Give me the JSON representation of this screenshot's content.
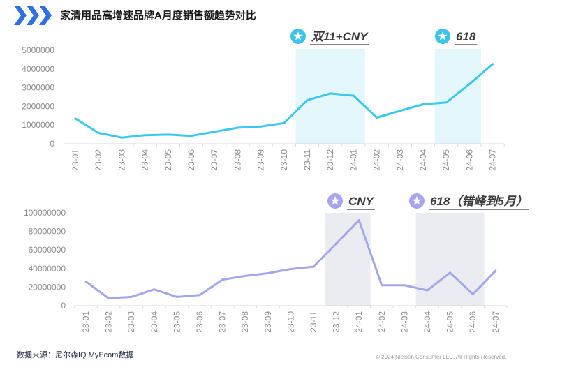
{
  "page": {
    "title": "家清用品高增速品牌A月度销售额趋势对比",
    "source": "数据来源：尼尔森IQ  MyEcom数据",
    "copyright": "© 2024  Nielsen Consumer LLC. All Rights Reserved.",
    "colors": {
      "brand_blue": "#2f6fe8",
      "line1": "#38c8f0",
      "band1": "#e3f7fd",
      "star1": "#3bc3ee",
      "line2": "#a2a6ef",
      "band2": "#ebebf2",
      "star2": "#a6a4ee",
      "axis_text": "#8c8c8c",
      "annotation_text": "#3a3a3a"
    }
  },
  "chart_data": [
    {
      "type": "line",
      "categories": [
        "23-01",
        "23-02",
        "23-03",
        "23-04",
        "23-05",
        "23-06",
        "23-07",
        "23-08",
        "23-09",
        "23-10",
        "23-11",
        "23-12",
        "24-01",
        "24-02",
        "24-03",
        "24-04",
        "24-05",
        "24-06",
        "24-07"
      ],
      "values": [
        1350000,
        580000,
        330000,
        460000,
        490000,
        420000,
        640000,
        860000,
        920000,
        1110000,
        2330000,
        2690000,
        2570000,
        1400000,
        1760000,
        2110000,
        2210000,
        3190000,
        4260000
      ],
      "ylim": [
        0,
        5000000
      ],
      "yticks": [
        "5000000",
        "4000000",
        "3000000",
        "2000000",
        "1000000",
        "0"
      ],
      "highlights": [
        {
          "label": "双11+CNY",
          "from": "23-11",
          "to": "24-01"
        },
        {
          "label": "618",
          "from": "24-05",
          "to": "24-06"
        }
      ]
    },
    {
      "type": "line",
      "categories": [
        "23-01",
        "23-02",
        "23-03",
        "23-04",
        "23-05",
        "23-06",
        "23-07",
        "23-08",
        "23-09",
        "23-10",
        "23-11",
        "23-12",
        "24-01",
        "24-02",
        "24-03",
        "24-04",
        "24-05",
        "24-06",
        "24-07"
      ],
      "values": [
        26000000,
        8000000,
        9500000,
        17500000,
        9500000,
        11500000,
        28000000,
        32000000,
        35000000,
        39500000,
        42000000,
        67000000,
        92000000,
        22000000,
        22000000,
        16500000,
        35500000,
        12500000,
        37500000
      ],
      "ylim": [
        0,
        100000000
      ],
      "yticks": [
        "100000000",
        "80000000",
        "60000000",
        "40000000",
        "20000000",
        "0"
      ],
      "highlights": [
        {
          "label": "CNY",
          "from": "23-12",
          "to": "24-01"
        },
        {
          "label": "618（错峰到5月）",
          "from": "24-04",
          "to": "24-06"
        }
      ]
    }
  ]
}
